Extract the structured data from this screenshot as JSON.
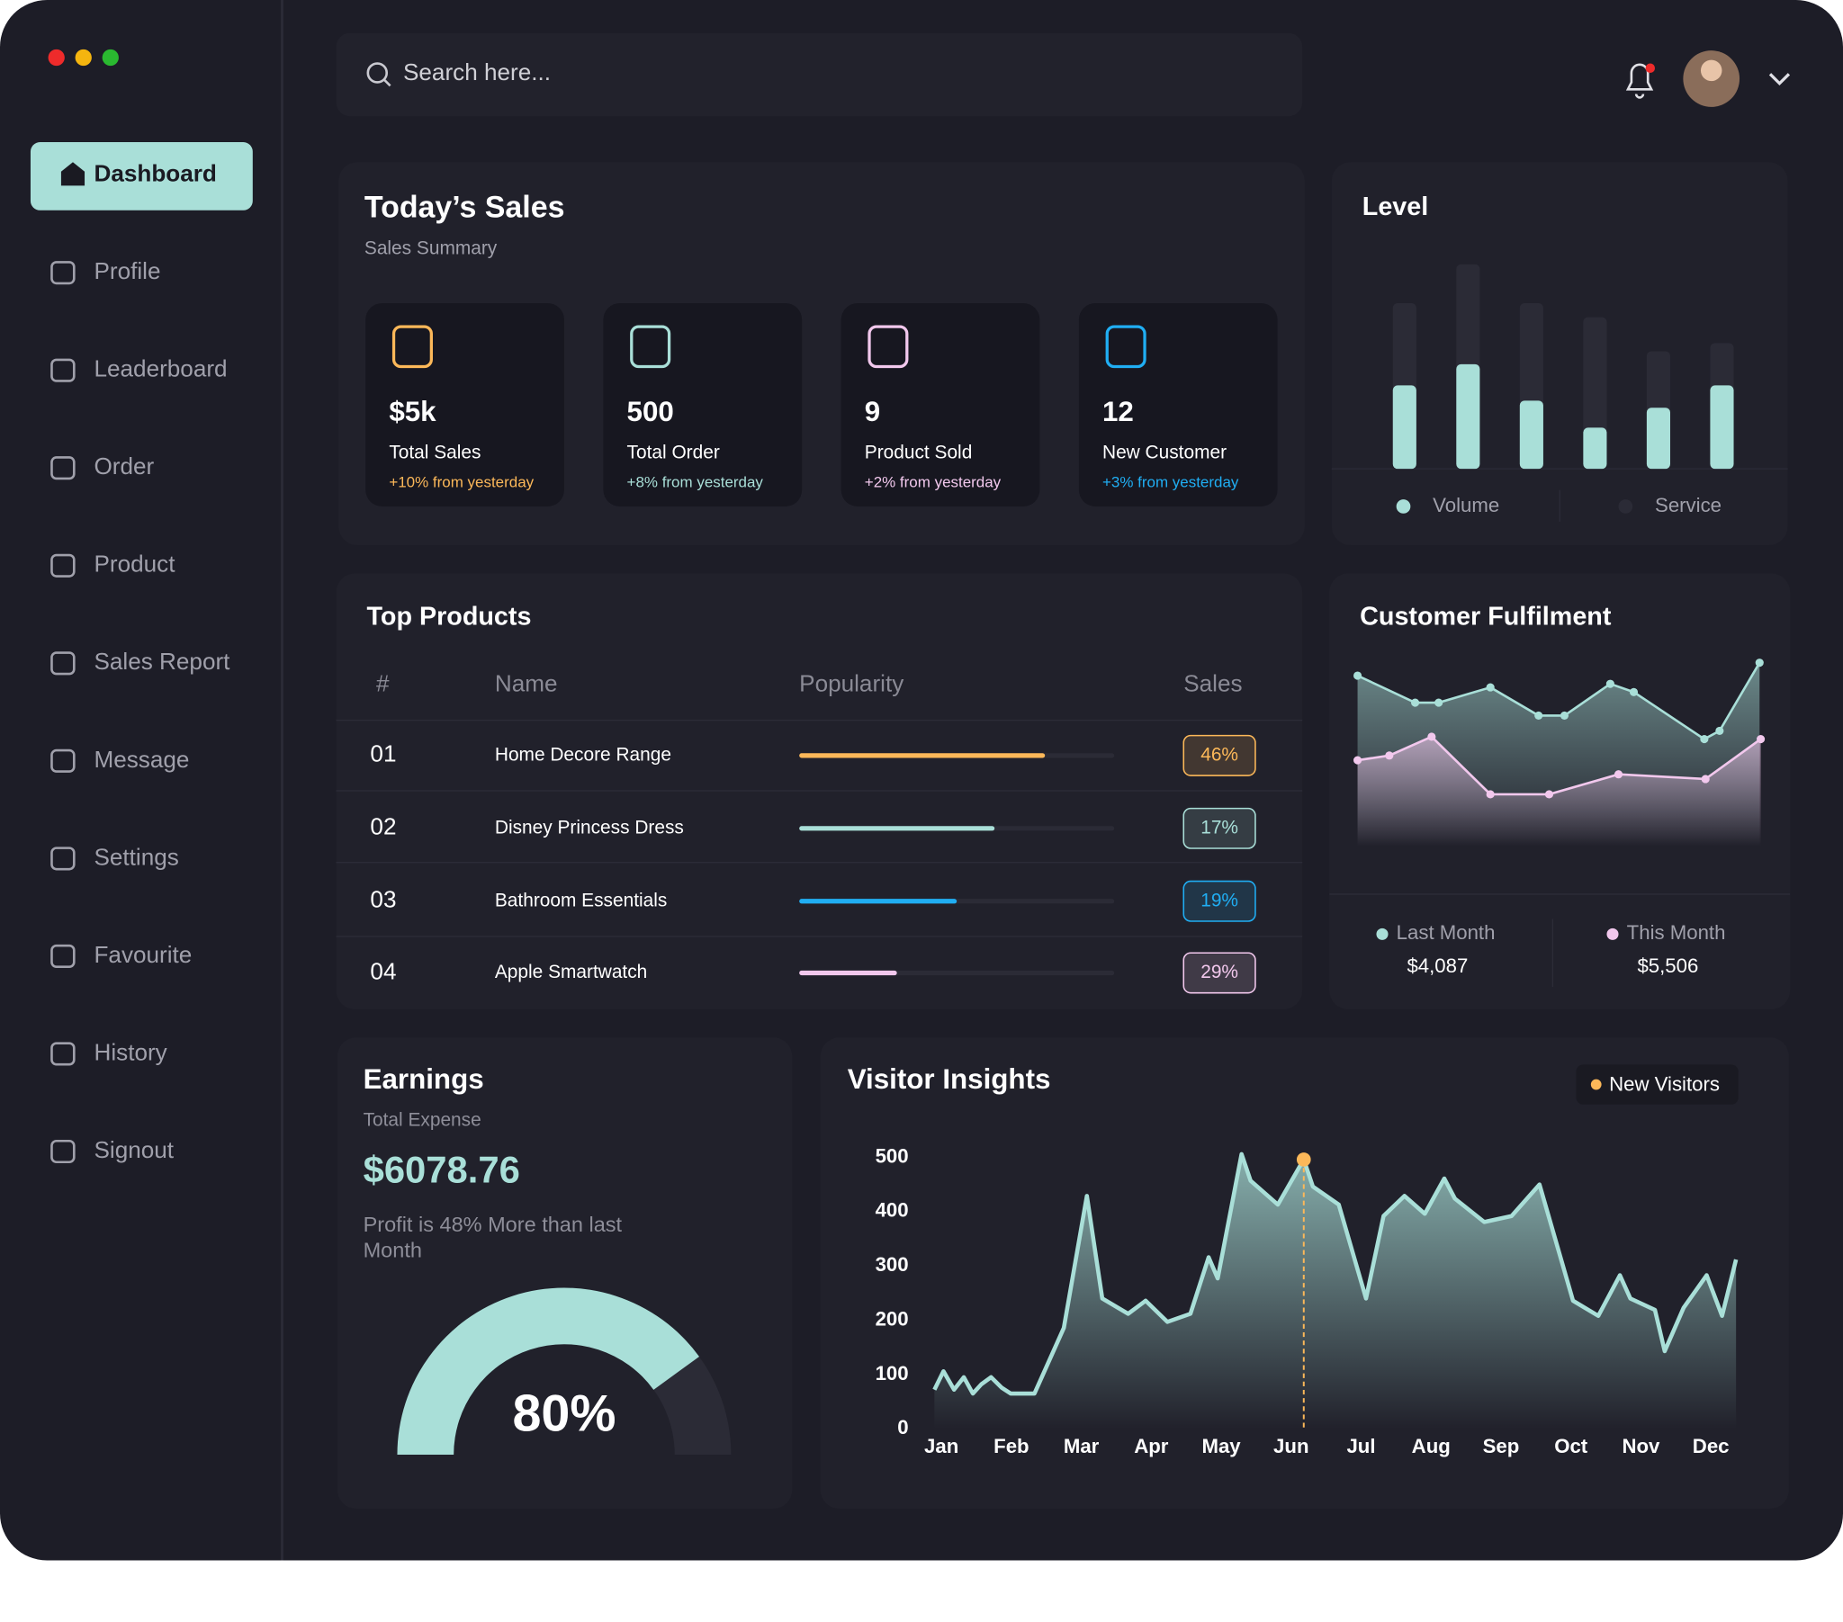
{
  "sidebar": {
    "nav": [
      "Dashboard",
      "Profile",
      "Leaderboard",
      "Order",
      "Product",
      "Sales Report",
      "Message",
      "Settings",
      "Favourite",
      "History",
      "Signout"
    ]
  },
  "search": {
    "placeholder": "Search here..."
  },
  "sales": {
    "title": "Today’s Sales",
    "subtitle": "Sales Summary",
    "cards": [
      {
        "value": "$5k",
        "label": "Total Sales",
        "change": "+10% from yesterday",
        "color": "#fcb859"
      },
      {
        "value": "500",
        "label": "Total Order",
        "change": "+8% from yesterday",
        "color": "#a9dfd8"
      },
      {
        "value": "9",
        "label": "Product Sold",
        "change": "+2% from yesterday",
        "color": "#f2c8ed"
      },
      {
        "value": "12",
        "label": "New Customer",
        "change": "+3% from yesterday",
        "color": "#20aef3"
      }
    ]
  },
  "level": {
    "type": "bar",
    "title": "Level",
    "categories": [
      null,
      null,
      null,
      null,
      null,
      null
    ],
    "series": [
      {
        "name": "Volume",
        "color": "#a9dfd8",
        "values": [
          71,
          89,
          58,
          35,
          52,
          71
        ]
      },
      {
        "name": "Service",
        "color": "#2b2b36",
        "values": [
          141,
          174,
          141,
          129,
          100,
          107
        ]
      }
    ]
  },
  "products": {
    "title": "Top Products",
    "columns": [
      "#",
      "Name",
      "Popularity",
      "Sales"
    ],
    "rows": [
      {
        "rank": "01",
        "name": "Home Decore Range",
        "popularity": 78,
        "sales": "46%",
        "color": "#fcb859"
      },
      {
        "rank": "02",
        "name": "Disney Princess Dress",
        "popularity": 62,
        "sales": "17%",
        "color": "#a9dfd8"
      },
      {
        "rank": "03",
        "name": "Bathroom Essentials",
        "popularity": 50,
        "sales": "19%",
        "color": "#20aef3"
      },
      {
        "rank": "04",
        "name": "Apple Smartwatch",
        "popularity": 31,
        "sales": "29%",
        "color": "#f2c8ed"
      }
    ]
  },
  "fulfilment": {
    "type": "area",
    "title": "Customer Fulfilment",
    "series": [
      {
        "name": "Last Month",
        "color": "#a9dfd8",
        "total": "$4,087",
        "x": [
          0,
          49,
          69,
          113,
          154,
          176,
          215,
          235,
          295,
          308,
          342
        ],
        "values": [
          145,
          122,
          122,
          135,
          111,
          111,
          138,
          131,
          91,
          98,
          156
        ]
      },
      {
        "name": "This Month",
        "color": "#f2c8ed",
        "total": "$5,506",
        "x": [
          0,
          27,
          63,
          113,
          163,
          222,
          296,
          343
        ],
        "values": [
          73,
          77,
          93,
          44,
          44,
          61,
          57,
          91
        ]
      }
    ]
  },
  "earnings": {
    "title": "Earnings",
    "subtitle": "Total Expense",
    "amount": "$6078.76",
    "note": "Profit is 48% More than last Month",
    "gauge": {
      "type": "gauge",
      "value": 80,
      "value_label": "80%",
      "color": "#a9dfd8"
    }
  },
  "visitors": {
    "type": "area",
    "title": "Visitor Insights",
    "line_color": "#a9dfd8",
    "x": [
      -0.1,
      0.03,
      0.18,
      0.32,
      0.45,
      0.57,
      0.71,
      0.86,
      0.99,
      1.33,
      1.75,
      2.08,
      2.3,
      2.67,
      2.92,
      3.23,
      3.56,
      3.82,
      3.95,
      4.29,
      4.42,
      4.81,
      5.18,
      5.31,
      5.68,
      6.07,
      6.32,
      6.62,
      6.91,
      7.19,
      7.34,
      7.76,
      8.15,
      8.55,
      9.03,
      9.39,
      9.7,
      9.85,
      10.2,
      10.34,
      10.61,
      10.94,
      11.16,
      11.36
    ],
    "series": [
      {
        "name": "New Visitors",
        "color": "#fcb859",
        "values": [
          72,
          106,
          72,
          95,
          65,
          82,
          95,
          76,
          65,
          65,
          186,
          429,
          240,
          212,
          236,
          197,
          212,
          316,
          277,
          506,
          457,
          413,
          496,
          446,
          413,
          240,
          392,
          429,
          396,
          461,
          424,
          381,
          392,
          450,
          236,
          208,
          283,
          240,
          219,
          143,
          223,
          283,
          208,
          312
        ]
      }
    ],
    "highlight": 22,
    "xlim": [
      -0.1,
      11.36
    ],
    "xticks": [
      {
        "value": 0,
        "label": "Jan"
      },
      {
        "value": 1,
        "label": "Feb"
      },
      {
        "value": 2,
        "label": "Mar"
      },
      {
        "value": 3,
        "label": "Apr"
      },
      {
        "value": 4,
        "label": "May"
      },
      {
        "value": 5,
        "label": "Jun"
      },
      {
        "value": 6,
        "label": "Jul"
      },
      {
        "value": 7,
        "label": "Aug"
      },
      {
        "value": 8,
        "label": "Sep"
      },
      {
        "value": 9,
        "label": "Oct"
      },
      {
        "value": 10,
        "label": "Nov"
      },
      {
        "value": 11,
        "label": "Dec"
      }
    ],
    "ylim": [
      0,
      500
    ],
    "yticks": [
      0,
      100,
      200,
      300,
      400,
      500
    ]
  }
}
